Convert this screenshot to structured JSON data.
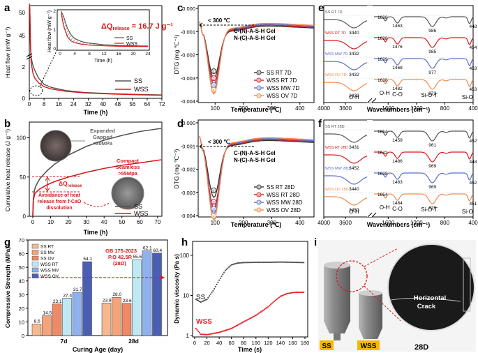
{
  "chart_data": [
    {
      "panel": "a",
      "type": "line",
      "xlabel": "Time (h)",
      "ylabel": "Heat flow (mW g⁻¹)",
      "xlim": [
        0,
        72
      ],
      "xticks": [
        0,
        8,
        16,
        24,
        32,
        40,
        48,
        56,
        64,
        72
      ],
      "ylim_lower": [
        0,
        3
      ],
      "yticks_lower": [
        0,
        2
      ],
      "ylim_upper": [
        44,
        50
      ],
      "yticks_upper": [
        45,
        50
      ],
      "series": [
        {
          "name": "SS",
          "color": "#555555",
          "x": [
            0.1,
            0.3,
            0.6,
            1,
            2,
            3,
            5,
            8,
            12,
            20,
            30,
            45,
            60,
            72
          ],
          "y": [
            52,
            45,
            12,
            2.6,
            2.1,
            1.8,
            1.3,
            0.9,
            0.7,
            0.5,
            0.38,
            0.3,
            0.25,
            0.22
          ]
        },
        {
          "name": "WSS",
          "color": "#d7191c",
          "x": [
            0.1,
            0.3,
            0.6,
            1,
            2,
            3,
            5,
            8,
            12,
            20,
            30,
            45,
            60,
            72
          ],
          "y": [
            50,
            44,
            10,
            2.3,
            1.6,
            1.3,
            1.0,
            0.75,
            0.6,
            0.45,
            0.35,
            0.28,
            0.23,
            0.2
          ]
        }
      ],
      "inset": {
        "xlabel": "Time (h)",
        "ylabel": "Heat flow (mW g⁻¹)",
        "xlim": [
          0,
          24
        ],
        "xticks": [
          0,
          4,
          8,
          12,
          16,
          20,
          24
        ],
        "ylim": [
          0,
          2
        ],
        "yticks": [
          0,
          1,
          2
        ],
        "annotation": "ΔQ",
        "annotation_sub": "release",
        "annotation_value": " = 16.7 J g⁻¹",
        "series": [
          {
            "name": "SS",
            "x": [
              0.3,
              1,
              2,
              3,
              4,
              6,
              8,
              12,
              16,
              20,
              24
            ],
            "y": [
              2.0,
              1.7,
              1.1,
              0.75,
              0.55,
              0.38,
              0.3,
              0.22,
              0.18,
              0.16,
              0.15
            ]
          },
          {
            "name": "WSS",
            "x": [
              0.3,
              1,
              2,
              3,
              4,
              6,
              8,
              12,
              16,
              20,
              24
            ],
            "y": [
              1.9,
              1.2,
              0.65,
              0.42,
              0.32,
              0.24,
              0.2,
              0.16,
              0.14,
              0.13,
              0.12
            ]
          }
        ]
      }
    },
    {
      "panel": "b",
      "type": "line",
      "xlabel": "Time (h)",
      "ylabel": "Cumulative heat release (J g⁻¹)",
      "xlim": [
        0,
        72
      ],
      "xticks": [
        0,
        10,
        20,
        30,
        40,
        50,
        60,
        70
      ],
      "ylim": [
        0,
        120
      ],
      "yticks": [
        0,
        50,
        100
      ],
      "series": [
        {
          "name": "SS",
          "color": "#555555",
          "x": [
            0,
            0.3,
            1,
            2,
            4,
            8,
            12,
            20,
            30,
            40,
            50,
            60,
            72
          ],
          "y": [
            0,
            22,
            34,
            40,
            48,
            58,
            66,
            78,
            89,
            97,
            103,
            108,
            112
          ]
        },
        {
          "name": "WSS",
          "color": "#d7191c",
          "x": [
            0,
            0.3,
            1,
            2,
            4,
            8,
            12,
            20,
            30,
            40,
            50,
            60,
            72
          ],
          "y": [
            0,
            20,
            28,
            31,
            35,
            40,
            44,
            50,
            56,
            61,
            65,
            68,
            72
          ]
        }
      ],
      "annotations": {
        "ss_label": [
          "Expanded",
          "Gapped",
          "<30MPa"
        ],
        "wss_label": [
          "Compact",
          "Seamless",
          ">55Mpa"
        ],
        "delta": "ΔQ",
        "delta_sub": "release",
        "avoid": [
          "Avoidance of heat",
          "release from f-CaO",
          "dissolution"
        ]
      }
    },
    {
      "panel": "c",
      "type": "line",
      "xlabel": "Temperature (℃)",
      "ylabel": "DTG (mg ℃⁻¹)",
      "xlim": [
        40,
        450
      ],
      "xticks": [
        100,
        200,
        300,
        400
      ],
      "ylim": [
        -0.004,
        0.0001
      ],
      "yticks": [
        "0.000",
        "-0.001",
        "-0.002",
        "-0.003",
        "-0.004"
      ],
      "range_label": "< 300 ℃",
      "gel_labels": [
        "C-(N)-A-S-H Gel",
        "N-(C)-A-S-H Gel"
      ],
      "markers": [
        "①",
        "②",
        "③",
        "④"
      ],
      "series": [
        {
          "name": "SS  RT 7D",
          "color": "#333333",
          "min": -0.0022
        },
        {
          "name": "WSS RT 7D",
          "color": "#d7191c",
          "min": -0.0025
        },
        {
          "name": "WSS MW 7D",
          "color": "#5a6ec9",
          "min": -0.0028
        },
        {
          "name": "WSS OV 7D",
          "color": "#f08a4b",
          "min": -0.003
        }
      ]
    },
    {
      "panel": "d",
      "type": "line",
      "xlabel": "Temperature (℃)",
      "ylabel": "DTG (mg ℃⁻¹)",
      "xlim": [
        40,
        450
      ],
      "xticks": [
        100,
        200,
        300,
        400
      ],
      "ylim": [
        -0.004,
        0.0001
      ],
      "yticks": [
        "0.000",
        "-0.001",
        "-0.002",
        "-0.003",
        "-0.004"
      ],
      "range_label": "< 300 ℃",
      "gel_labels": [
        "C-(N)-A-S-H Gel",
        "N-(C)-A-S-H Gel"
      ],
      "markers": [
        "①",
        "②",
        "③",
        "④"
      ],
      "series": [
        {
          "name": "SS  RT 28D",
          "color": "#333333",
          "min": -0.0024
        },
        {
          "name": "WSS RT 28D",
          "color": "#d7191c",
          "min": -0.0029
        },
        {
          "name": "WSS MW 28D",
          "color": "#5a6ec9",
          "min": -0.0032
        },
        {
          "name": "WSS OV 28D",
          "color": "#f08a4b",
          "min": -0.0035
        }
      ]
    },
    {
      "panel": "e",
      "type": "line",
      "xlabel": "Wavenumbers (cm⁻¹)",
      "xticks": [
        4000,
        3600,
        1600,
        1200,
        800,
        400
      ],
      "series": [
        {
          "name": "SS RT 7D",
          "color": "#555555",
          "peaks": [
            "3440",
            "1638",
            "1463",
            "986",
            "448"
          ]
        },
        {
          "name": "WSS RT 7D",
          "color": "#d7191c",
          "peaks": [
            "3432",
            "1638",
            "1476",
            "985",
            "454"
          ]
        },
        {
          "name": "WSS MW 7D",
          "color": "#5a6ec9",
          "peaks": [
            "3432",
            "1639",
            "1468",
            "977",
            "453"
          ]
        },
        {
          "name": "WSS OV 7D",
          "color": "#f08a4b",
          "peaks": [
            "3439",
            "1638",
            "1482",
            "973",
            "453"
          ]
        }
      ],
      "band_labels": [
        "O-H",
        "O-H",
        "C-O",
        "Si-O-T",
        "Si-O"
      ]
    },
    {
      "panel": "f",
      "type": "line",
      "xlabel": "Wavenumbers (cm⁻¹)",
      "xticks": [
        4000,
        3600,
        1600,
        1200,
        800,
        400
      ],
      "series": [
        {
          "name": "SS RT 28D",
          "color": "#555555",
          "peaks": [
            "3431",
            "1654",
            "1459",
            "961",
            "452"
          ]
        },
        {
          "name": "WSS RT 28D",
          "color": "#d7191c",
          "peaks": [
            "3452",
            "1642",
            "1486",
            "969",
            "448"
          ]
        },
        {
          "name": "WSS MW 28D",
          "color": "#5a6ec9",
          "peaks": [
            "3440",
            "1638",
            "1483",
            "969",
            "452"
          ]
        },
        {
          "name": "WSS OV 28D",
          "color": "#f08a4b",
          "peaks": [
            "3450",
            "1654",
            "1484",
            "970",
            "451"
          ]
        }
      ],
      "band_labels": [
        "O-H",
        "O-H",
        "C-O",
        "Si-O-T",
        "Si-O"
      ]
    },
    {
      "panel": "g",
      "type": "bar",
      "xlabel": "Curing Age (day)",
      "ylabel": "Compressive Strength (MPa)",
      "categories": [
        "7d",
        "28d"
      ],
      "ylim": [
        0,
        70
      ],
      "yticks": [
        0,
        10,
        20,
        30,
        40,
        50,
        60,
        70
      ],
      "series": [
        {
          "name": "SS RT",
          "color": "#f6b98f",
          "values": [
            8.5,
            23.8
          ]
        },
        {
          "name": "SS MV",
          "color": "#f4a37a",
          "values": [
            14.5,
            28.0
          ]
        },
        {
          "name": "SS OV",
          "color": "#ee8a66",
          "values": [
            23.1,
            23.6
          ]
        },
        {
          "name": "WSS RT",
          "color": "#bfe8f5",
          "values": [
            27.4,
            55.6
          ]
        },
        {
          "name": "WSS MV",
          "color": "#8fb1ee",
          "values": [
            31.7,
            62.1
          ]
        },
        {
          "name": "WSS OV",
          "color": "#4a5fb3",
          "values": [
            54.1,
            60.4
          ]
        }
      ],
      "threshold": 42.5,
      "threshold_label": [
        "GB 175-2023",
        "P.O 42.5R",
        "(28D)"
      ]
    },
    {
      "panel": "h",
      "type": "line",
      "xlabel": "Time (s)",
      "ylabel": "Dynamic viscosity (Pa s)",
      "xlim": [
        0,
        180
      ],
      "xticks": [
        0,
        20,
        40,
        60,
        80,
        100,
        120,
        140,
        160,
        180
      ],
      "yscale": "log",
      "ylim": [
        1,
        100
      ],
      "yticks": [
        1,
        10,
        100
      ],
      "series": [
        {
          "name": "SS",
          "color": "#555555",
          "x": [
            2,
            10,
            20,
            30,
            40,
            50,
            60,
            70,
            80,
            100,
            120,
            140,
            160,
            180
          ],
          "y": [
            8,
            6.8,
            8,
            13,
            24,
            42,
            58,
            64,
            66,
            67,
            67,
            68,
            67,
            66
          ]
        },
        {
          "name": "WSS",
          "color": "#e8252a",
          "x": [
            2,
            10,
            20,
            40,
            60,
            80,
            100,
            120,
            130,
            140,
            150,
            160,
            170,
            180
          ],
          "y": [
            1.5,
            1.08,
            1.05,
            1.2,
            1.5,
            2.2,
            3.2,
            5.2,
            7.2,
            9.5,
            11,
            11.8,
            12,
            12
          ]
        }
      ]
    },
    {
      "panel": "i",
      "type": "image",
      "specimen_labels": [
        "SS",
        "WSS"
      ],
      "age_label": "28D",
      "crack_label": [
        "Horizontal",
        "Crack"
      ]
    }
  ]
}
